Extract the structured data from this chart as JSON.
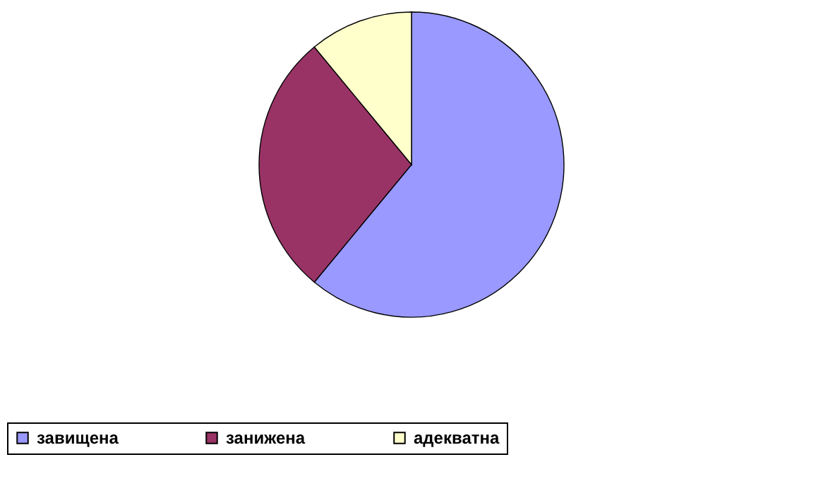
{
  "chart_data": {
    "type": "pie",
    "categories": [
      "завищена",
      "занижена",
      "адекватна"
    ],
    "values": [
      61,
      28,
      11
    ],
    "colors": [
      "#9999ff",
      "#993366",
      "#ffffcc"
    ],
    "legend": "bottom"
  }
}
